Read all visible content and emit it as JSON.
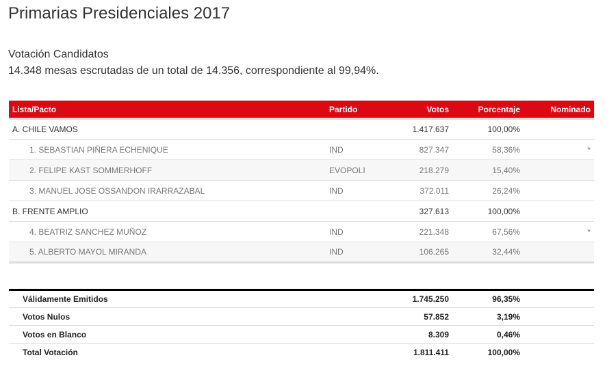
{
  "title": "Primarias Presidenciales 2017",
  "subtitle": "Votación Candidatos",
  "summary": "14.348 mesas escrutadas de un total de 14.356, correspondiente al 99,94%.",
  "colors": {
    "header_bg": "#dc0814"
  },
  "headers": {
    "lista": "Lista/Pacto",
    "partido": "Partido",
    "votos": "Votos",
    "porcentaje": "Porcentaje",
    "nominado": "Nominado"
  },
  "rows": [
    {
      "type": "pacto",
      "name": "A. CHILE VAMOS",
      "partido": "",
      "votos": "1.417.637",
      "pct": "100,00%",
      "nominado": ""
    },
    {
      "type": "cand",
      "name": "1. SEBASTIAN PIÑERA ECHENIQUE",
      "partido": "IND",
      "votos": "827.347",
      "pct": "58,36%",
      "nominado": "*"
    },
    {
      "type": "cand alt",
      "name": "2. FELIPE KAST SOMMERHOFF",
      "partido": "EVOPOLI",
      "votos": "218.279",
      "pct": "15,40%",
      "nominado": ""
    },
    {
      "type": "cand",
      "name": "3. MANUEL JOSE OSSANDON IRARRAZABAL",
      "partido": "IND",
      "votos": "372.011",
      "pct": "26,24%",
      "nominado": ""
    },
    {
      "type": "pacto",
      "name": "B. FRENTE AMPLIO",
      "partido": "",
      "votos": "327.613",
      "pct": "100,00%",
      "nominado": ""
    },
    {
      "type": "cand",
      "name": "4. BEATRIZ SANCHEZ MUÑOZ",
      "partido": "IND",
      "votos": "221.348",
      "pct": "67,56%",
      "nominado": "*"
    },
    {
      "type": "cand alt",
      "name": "5. ALBERTO MAYOL MIRANDA",
      "partido": "IND",
      "votos": "106.265",
      "pct": "32,44%",
      "nominado": ""
    }
  ],
  "totals": [
    {
      "label": "Válidamente Emitidos",
      "votos": "1.745.250",
      "pct": "96,35%"
    },
    {
      "label": "Votos Nulos",
      "votos": "57.852",
      "pct": "3,19%"
    },
    {
      "label": "Votos en Blanco",
      "votos": "8.309",
      "pct": "0,46%"
    },
    {
      "label": "Total Votación",
      "votos": "1.811.411",
      "pct": "100,00%"
    }
  ]
}
